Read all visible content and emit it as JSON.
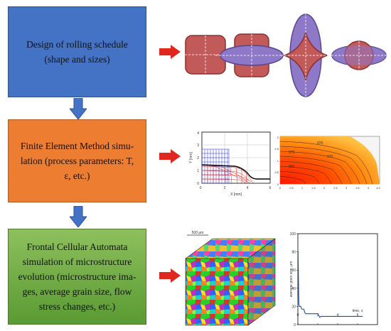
{
  "boxes": {
    "rolling": {
      "lines": [
        "Design of rolling schedule",
        "(shape and sizes)"
      ],
      "color": "#4472c4"
    },
    "fem": {
      "lines": [
        "Finite Element Method simu-",
        "lation (process parameters: T,",
        "ε, etc.)"
      ],
      "color": "#ed7d31"
    },
    "fca": {
      "lines": [
        "Frontal Cellular Automata",
        "simulation of microstructure",
        "evolution (microstructure ima-",
        "ges, average grain size, flow",
        "stress changes, etc.)"
      ],
      "color": "#70ad47"
    }
  },
  "icons": {
    "down_arrow": "down-arrow-icon",
    "right_arrow": "right-arrow-icon",
    "down_arrow_color": "#4472c4",
    "right_arrow_color": "#e0271f"
  },
  "mesh_chart": {
    "xlabel": "X [mm]",
    "ylabel": "Y [mm]",
    "xticks": [
      "0",
      "2",
      "4",
      "6"
    ],
    "yticks": [
      "0",
      "1",
      "2",
      "3",
      "4"
    ]
  },
  "temp_map": {
    "yticks": [
      "0",
      "0.5",
      "1",
      "1.5",
      "2"
    ],
    "xticks": [
      "0",
      "0.5",
      "1",
      "1.5",
      "2",
      "2.5",
      "3",
      "3.5",
      "4",
      "4.5"
    ],
    "contours": [
      "970",
      "975",
      "980",
      "985"
    ]
  },
  "microstructure": {
    "scale": "500 µm"
  },
  "chart_data": {
    "type": "line",
    "xlabel": "time, s",
    "ylabel": "average grain size, µm",
    "xlim": [
      0,
      8
    ],
    "ylim": [
      0,
      100
    ],
    "xticks": [
      "0",
      "2",
      "4",
      "6"
    ],
    "yticks": [
      "0",
      "20",
      "40",
      "60",
      "80",
      "100"
    ],
    "series": [
      {
        "x": [
          0,
          0.02,
          0.04,
          0.06,
          0.08,
          0.1,
          0.15,
          0.2,
          0.25,
          0.3,
          0.35,
          0.4,
          0.45,
          0.5,
          0.6,
          0.7,
          0.8,
          0.9,
          1.0,
          1.5,
          2.0,
          2.05,
          2.1,
          2.15,
          2.2,
          2.3,
          3.0,
          4.0,
          5.0,
          6.0,
          6.5
        ],
        "y": [
          80,
          80,
          65,
          50,
          30,
          22,
          20,
          20,
          20,
          20,
          18,
          17,
          17,
          17,
          17,
          13,
          12,
          12,
          12,
          12,
          12,
          11,
          10,
          9,
          8,
          9,
          9,
          9,
          9,
          9,
          9
        ]
      }
    ]
  }
}
